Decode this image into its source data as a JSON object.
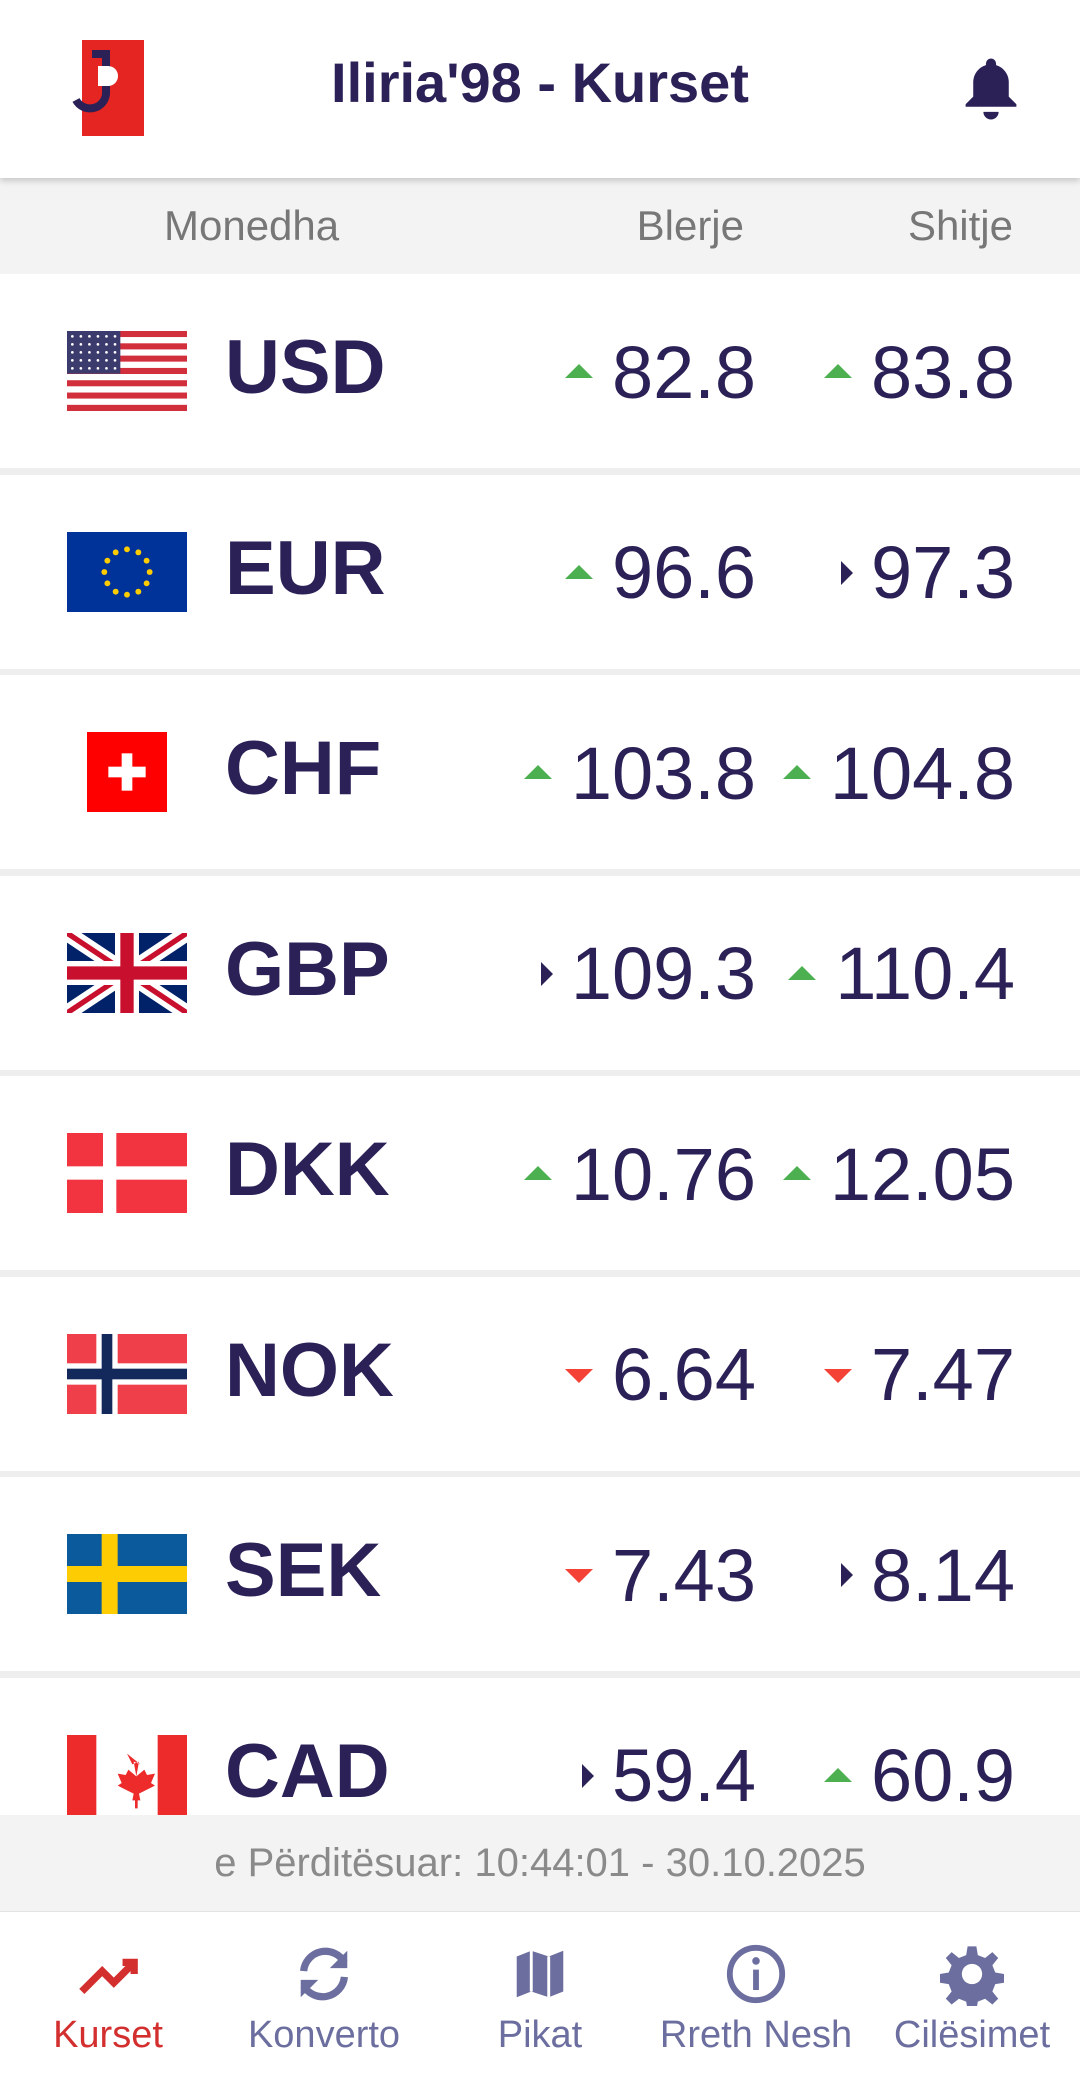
{
  "header": {
    "title": "Iliria'98 - Kurset"
  },
  "table": {
    "headers": [
      "Monedha",
      "Blerje",
      "Shitje"
    ],
    "rows": [
      {
        "code": "USD",
        "buy": "82.8",
        "buy_trend": "up",
        "sell": "83.8",
        "sell_trend": "up"
      },
      {
        "code": "EUR",
        "buy": "96.6",
        "buy_trend": "up",
        "sell": "97.3",
        "sell_trend": "flat"
      },
      {
        "code": "CHF",
        "buy": "103.8",
        "buy_trend": "up",
        "sell": "104.8",
        "sell_trend": "up"
      },
      {
        "code": "GBP",
        "buy": "109.3",
        "buy_trend": "flat",
        "sell": "110.4",
        "sell_trend": "up"
      },
      {
        "code": "DKK",
        "buy": "10.76",
        "buy_trend": "up",
        "sell": "12.05",
        "sell_trend": "up"
      },
      {
        "code": "NOK",
        "buy": "6.64",
        "buy_trend": "down",
        "sell": "7.47",
        "sell_trend": "down"
      },
      {
        "code": "SEK",
        "buy": "7.43",
        "buy_trend": "down",
        "sell": "8.14",
        "sell_trend": "flat"
      },
      {
        "code": "CAD",
        "buy": "59.4",
        "buy_trend": "flat",
        "sell": "60.9",
        "sell_trend": "up"
      }
    ]
  },
  "footer": {
    "updated": "e Përditësuar: 10:44:01 - 30.10.2025"
  },
  "nav": [
    {
      "label": "Kurset",
      "active": true
    },
    {
      "label": "Konverto",
      "active": false
    },
    {
      "label": "Pikat",
      "active": false
    },
    {
      "label": "Rreth Nesh",
      "active": false
    },
    {
      "label": "Cilësimet",
      "active": false
    }
  ]
}
